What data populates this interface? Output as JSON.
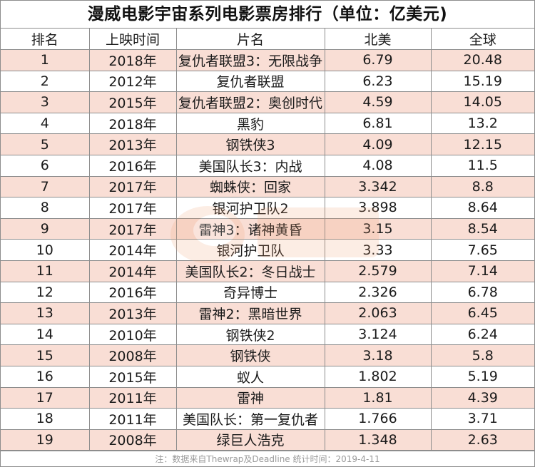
{
  "title": "漫威电影宇宙系列电影票房排行（单位：亿美元)",
  "columns": [
    "排名",
    "上映时间",
    "片名",
    "北美",
    "全球"
  ],
  "rows": [
    [
      "1",
      "2018年",
      "复仇者联盟3：无限战争",
      "6.79",
      "20.48"
    ],
    [
      "2",
      "2012年",
      "复仇者联盟",
      "6.23",
      "15.19"
    ],
    [
      "3",
      "2015年",
      "复仇者联盟2：奥创时代",
      "4.59",
      "14.05"
    ],
    [
      "4",
      "2018年",
      "黑豹",
      "6.81",
      "13.2"
    ],
    [
      "5",
      "2013年",
      "钢铁侠3",
      "4.09",
      "12.15"
    ],
    [
      "6",
      "2016年",
      "美国队长3：内战",
      "4.08",
      "11.5"
    ],
    [
      "7",
      "2017年",
      "蜘蛛侠：回家",
      "3.342",
      "8.8"
    ],
    [
      "8",
      "2017年",
      "银河护卫队2",
      "3.898",
      "8.64"
    ],
    [
      "9",
      "2017年",
      "雷神3：诸神黄昏",
      "3.15",
      "8.54"
    ],
    [
      "10",
      "2014年",
      "银河护卫队",
      "3.33",
      "7.65"
    ],
    [
      "11",
      "2014年",
      "美国队长2：冬日战士",
      "2.579",
      "7.14"
    ],
    [
      "12",
      "2016年",
      "奇异博士",
      "2.326",
      "6.78"
    ],
    [
      "13",
      "2013年",
      "雷神2：黑暗世界",
      "2.063",
      "6.45"
    ],
    [
      "14",
      "2010年",
      "钢铁侠2",
      "3.124",
      "6.24"
    ],
    [
      "15",
      "2008年",
      "钢铁侠",
      "3.18",
      "5.8"
    ],
    [
      "16",
      "2015年",
      "蚁人",
      "1.802",
      "5.19"
    ],
    [
      "17",
      "2011年",
      "雷神",
      "1.81",
      "4.39"
    ],
    [
      "18",
      "2011年",
      "美国队长：第一复仇者",
      "1.766",
      "3.71"
    ],
    [
      "19",
      "2008年",
      "绿巨人浩克",
      "1.348",
      "2.63"
    ]
  ],
  "footnote": "注：数据来自Thewrap及Deadline  统计时间：2019-4-11",
  "colors": {
    "row_highlight": "#f9ded5",
    "grid": "#8d8d8d",
    "footnote": "#9a9a9a"
  }
}
